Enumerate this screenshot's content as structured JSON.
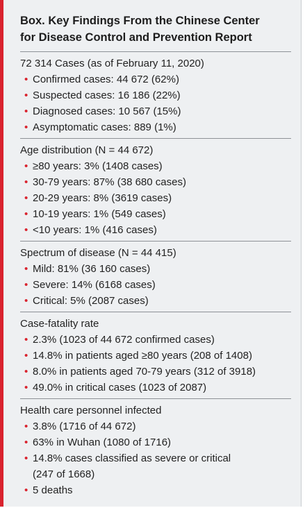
{
  "title": [
    "Box. Key Findings From the Chinese Center",
    "for Disease Control and Prevention Report"
  ],
  "sections": [
    {
      "heading": "72 314 Cases (as of February 11, 2020)",
      "items": [
        "Confirmed cases: 44 672 (62%)",
        "Suspected cases: 16 186 (22%)",
        "Diagnosed cases: 10 567 (15%)",
        "Asymptomatic cases: 889 (1%)"
      ]
    },
    {
      "heading": "Age distribution (N = 44 672)",
      "items": [
        "≥80 years: 3% (1408 cases)",
        "30-79 years: 87% (38 680 cases)",
        "20-29 years: 8% (3619 cases)",
        "10-19 years: 1% (549 cases)",
        "<10 years: 1% (416 cases)"
      ]
    },
    {
      "heading": "Spectrum of disease (N = 44 415)",
      "items": [
        "Mild: 81% (36 160 cases)",
        "Severe: 14% (6168 cases)",
        "Critical: 5% (2087 cases)"
      ]
    },
    {
      "heading": "Case-fatality rate",
      "items": [
        "2.3% (1023 of 44 672 confirmed cases)",
        "14.8% in patients aged ≥80 years (208 of 1408)",
        "8.0% in patients aged 70-79 years (312 of 3918)",
        "49.0% in critical cases (1023 of 2087)"
      ]
    },
    {
      "heading": "Health care personnel infected",
      "items": [
        "3.8% (1716 of 44 672)",
        "63% in Wuhan (1080 of 1716)",
        [
          "14.8% cases classified as severe or critical",
          "(247 of 1668)"
        ],
        "5 deaths"
      ]
    }
  ]
}
